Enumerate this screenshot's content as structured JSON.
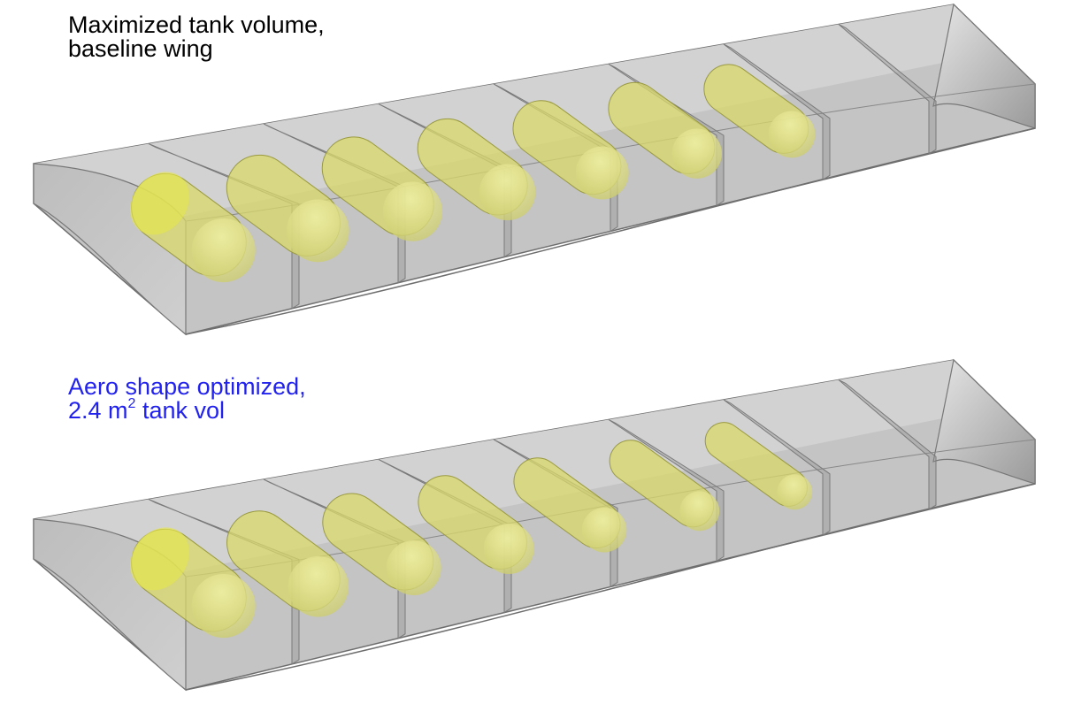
{
  "panels": [
    {
      "label_line1": "Maximized tank volume,",
      "label_line2": "baseline wing",
      "label_color": "#000000",
      "tank_radii": [
        1.0,
        0.98,
        0.93,
        0.88,
        0.83,
        0.78,
        0.73
      ]
    },
    {
      "label_line1": "Aero shape optimized,",
      "label_line2_pre": "2.4 m",
      "label_line2_sup": "2",
      "label_line2_post": " tank vol",
      "label_color": "#2222ee",
      "tank_radii": [
        1.0,
        0.95,
        0.86,
        0.79,
        0.7,
        0.62,
        0.55
      ]
    }
  ],
  "colors": {
    "wing_fill": "#c4c4c4",
    "wing_dark": "#8e8e8e",
    "tank_fill": "#d8d86a",
    "tank_bright": "#e8e84a"
  }
}
